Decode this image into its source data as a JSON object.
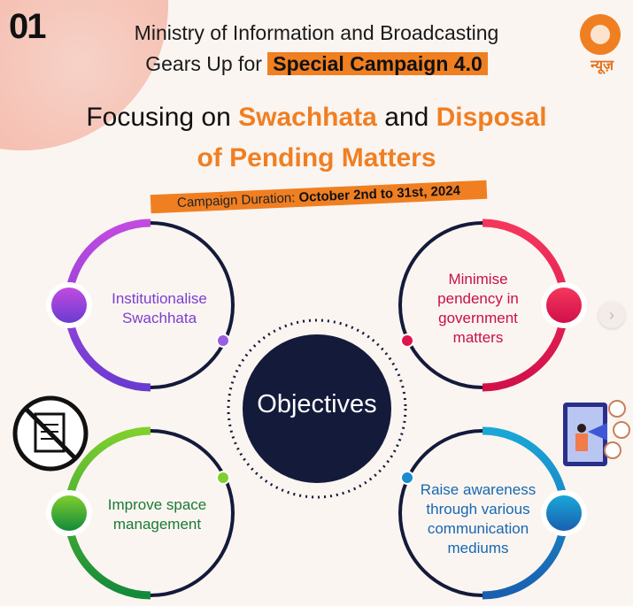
{
  "slide_number": "01",
  "header": {
    "line1": "Ministry of Information and Broadcasting",
    "line2_prefix": "Gears Up for ",
    "line2_highlight": "Special Campaign 4.0"
  },
  "title": {
    "part1": "Focusing on ",
    "part2": "Swachhata",
    "part3": " and ",
    "part4": "Disposal",
    "line2": "of Pending Matters"
  },
  "duration": {
    "label": "Campaign Duration: ",
    "value": "October 2nd to 31st, 2024"
  },
  "logo": {
    "text": "न्यूज़"
  },
  "center": {
    "label": "Objectives"
  },
  "objectives": [
    {
      "label": "Institutionalise Swachhata",
      "color": "#8a3fd6"
    },
    {
      "label": "Minimise pendency in government matters",
      "color": "#e0134d"
    },
    {
      "label": "Improve space management",
      "color": "#1a8a3a"
    },
    {
      "label": "Raise awareness through various communication mediums",
      "color": "#1672b5"
    }
  ],
  "colors": {
    "accent": "#f07f22",
    "navy": "#141a3a"
  },
  "icons": [
    "no-document-icon",
    "megaphone-people-icon",
    "chevron-right-icon"
  ]
}
